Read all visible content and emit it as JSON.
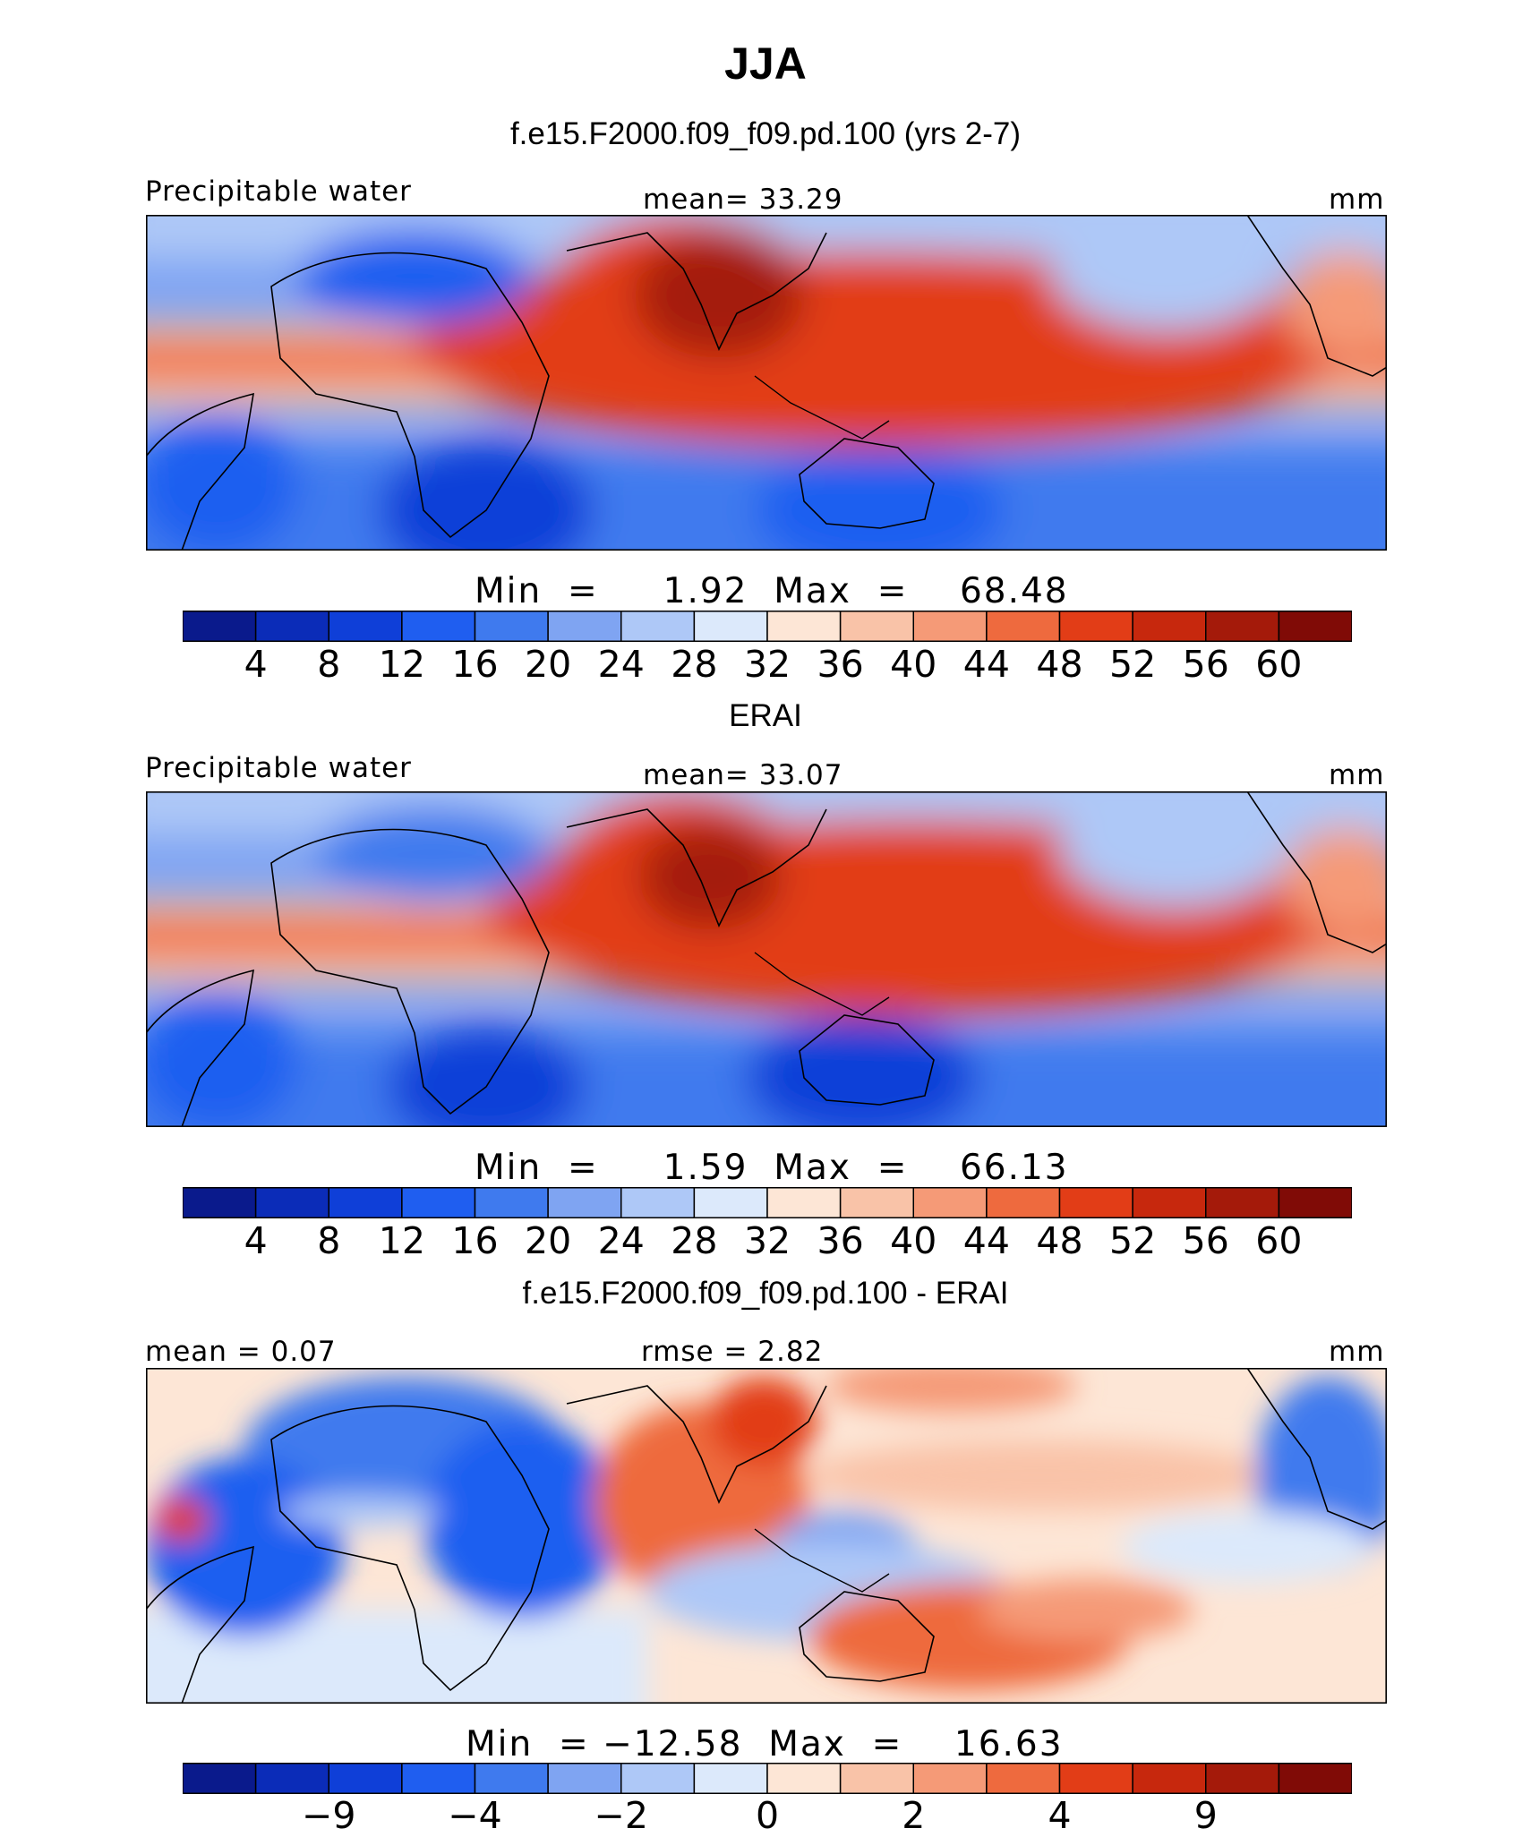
{
  "figure": {
    "title": "JJA"
  },
  "panels": [
    {
      "title": "f.e15.F2000.f09_f09.pd.100 (yrs 2-7)",
      "left_label": "Precipitable water",
      "center_label": "mean=   33.29",
      "right_label": "mm",
      "minmax_label": "Min  =     1.92  Max  =    68.48"
    },
    {
      "title": "ERAI",
      "left_label": "Precipitable water",
      "center_label": "mean=   33.07",
      "right_label": "mm",
      "minmax_label": "Min  =     1.59  Max  =    66.13"
    },
    {
      "title": "f.e15.F2000.f09_f09.pd.100 - ERAI",
      "left_label": "mean  =    0.07",
      "center_label": "rmse  =    2.82",
      "right_label": "mm",
      "minmax_label": "Min  = −12.58  Max  =    16.63"
    }
  ],
  "chart_data": [
    {
      "type": "heatmap",
      "title": "f.e15.F2000.f09_f09.pd.100 (yrs 2-7)",
      "variable": "Precipitable water",
      "units": "mm",
      "mean": 33.29,
      "min": 1.92,
      "max": 68.48,
      "levels": [
        4,
        8,
        12,
        16,
        20,
        24,
        28,
        32,
        36,
        40,
        44,
        48,
        52,
        56,
        60
      ],
      "tick_labels": [
        "4",
        "8",
        "12",
        "16",
        "20",
        "24",
        "28",
        "32",
        "36",
        "40",
        "44",
        "48",
        "52",
        "56",
        "60"
      ],
      "colors": [
        "#0a1a8c",
        "#0b2cb8",
        "#0f3fd8",
        "#1f5ef0",
        "#3f7aee",
        "#7fa4f2",
        "#aec8f7",
        "#dce9fb",
        "#fde6d6",
        "#f9c3a8",
        "#f59a77",
        "#ee6a3e",
        "#e23d17",
        "#c7280d",
        "#a41a0a",
        "#800b06"
      ]
    },
    {
      "type": "heatmap",
      "title": "ERAI",
      "variable": "Precipitable water",
      "units": "mm",
      "mean": 33.07,
      "min": 1.59,
      "max": 66.13,
      "levels": [
        4,
        8,
        12,
        16,
        20,
        24,
        28,
        32,
        36,
        40,
        44,
        48,
        52,
        56,
        60
      ],
      "tick_labels": [
        "4",
        "8",
        "12",
        "16",
        "20",
        "24",
        "28",
        "32",
        "36",
        "40",
        "44",
        "48",
        "52",
        "56",
        "60"
      ],
      "colors": [
        "#0a1a8c",
        "#0b2cb8",
        "#0f3fd8",
        "#1f5ef0",
        "#3f7aee",
        "#7fa4f2",
        "#aec8f7",
        "#dce9fb",
        "#fde6d6",
        "#f9c3a8",
        "#f59a77",
        "#ee6a3e",
        "#e23d17",
        "#c7280d",
        "#a41a0a",
        "#800b06"
      ]
    },
    {
      "type": "heatmap",
      "title": "f.e15.F2000.f09_f09.pd.100 - ERAI",
      "units": "mm",
      "mean": 0.07,
      "rmse": 2.82,
      "min": -12.58,
      "max": 16.63,
      "levels": [
        -12,
        -9,
        -6,
        -4,
        -3,
        -2,
        -1,
        0,
        1,
        2,
        3,
        4,
        6,
        9,
        12
      ],
      "tick_labels": [
        "−9",
        "−4",
        "−2",
        "0",
        "2",
        "4",
        "9"
      ],
      "tick_positions": [
        2,
        4,
        6,
        8,
        10,
        12,
        14
      ],
      "colors": [
        "#0a1a8c",
        "#0b2cb8",
        "#0f3fd8",
        "#1f5ef0",
        "#3f7aee",
        "#7fa4f2",
        "#aec8f7",
        "#dce9fb",
        "#fde6d6",
        "#f9c3a8",
        "#f59a77",
        "#ee6a3e",
        "#e23d17",
        "#c7280d",
        "#a41a0a",
        "#800b06"
      ]
    }
  ]
}
